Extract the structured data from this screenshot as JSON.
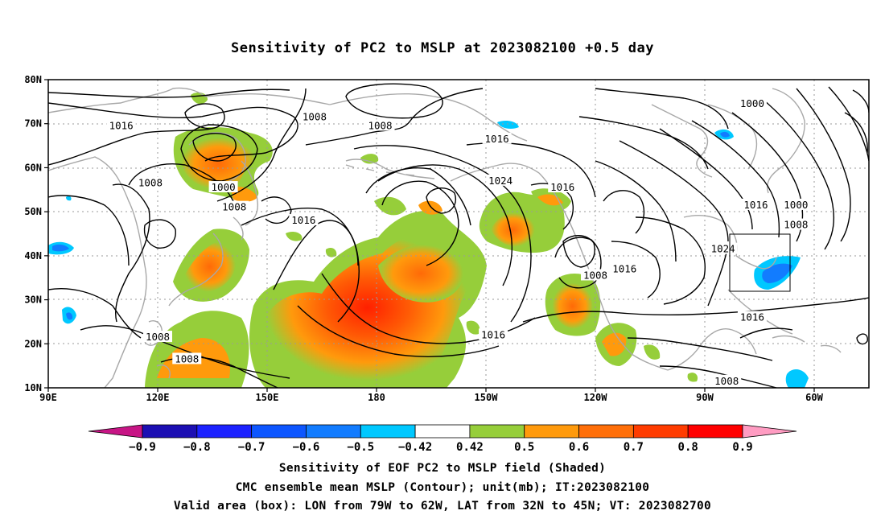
{
  "title": "Sensitivity of PC2 to MSLP at 2023082100 +0.5 day",
  "lat_ticks": [
    {
      "label": "80N",
      "lat": 80
    },
    {
      "label": "70N",
      "lat": 70
    },
    {
      "label": "60N",
      "lat": 60
    },
    {
      "label": "50N",
      "lat": 50
    },
    {
      "label": "40N",
      "lat": 40
    },
    {
      "label": "30N",
      "lat": 30
    },
    {
      "label": "20N",
      "lat": 20
    },
    {
      "label": "10N",
      "lat": 10
    }
  ],
  "lon_ticks": [
    {
      "label": "90E",
      "lon": 90
    },
    {
      "label": "120E",
      "lon": 120
    },
    {
      "label": "150E",
      "lon": 150
    },
    {
      "label": "180",
      "lon": 180
    },
    {
      "label": "150W",
      "lon": 210
    },
    {
      "label": "120W",
      "lon": 240
    },
    {
      "label": "90W",
      "lon": 270
    },
    {
      "label": "60W",
      "lon": 300
    }
  ],
  "map_extent": {
    "lon_min": 90,
    "lon_max": 315,
    "lat_min": 10,
    "lat_max": 80
  },
  "valid_box": {
    "lon_west": 281,
    "lon_east": 298,
    "lat_south": 32,
    "lat_north": 45
  },
  "contour_labels": [
    {
      "text": "1016",
      "lon": 110,
      "lat": 69.5
    },
    {
      "text": "1008",
      "lon": 163,
      "lat": 71.5
    },
    {
      "text": "1008",
      "lon": 181,
      "lat": 69.5
    },
    {
      "text": "1016",
      "lon": 213,
      "lat": 66.5
    },
    {
      "text": "1000",
      "lon": 283,
      "lat": 74.5
    },
    {
      "text": "1008",
      "lon": 118,
      "lat": 56.5
    },
    {
      "text": "1000",
      "lon": 138,
      "lat": 55.5
    },
    {
      "text": "1008",
      "lon": 141,
      "lat": 51
    },
    {
      "text": "1024",
      "lon": 214,
      "lat": 57
    },
    {
      "text": "1016",
      "lon": 231,
      "lat": 55.5
    },
    {
      "text": "1016",
      "lon": 160,
      "lat": 48
    },
    {
      "text": "1016",
      "lon": 284,
      "lat": 51.5
    },
    {
      "text": "1000",
      "lon": 295,
      "lat": 51.5
    },
    {
      "text": "1008",
      "lon": 295,
      "lat": 47
    },
    {
      "text": "1024",
      "lon": 275,
      "lat": 41.5
    },
    {
      "text": "1016",
      "lon": 248,
      "lat": 37
    },
    {
      "text": "1008",
      "lon": 240,
      "lat": 35.5
    },
    {
      "text": "1016",
      "lon": 283,
      "lat": 26
    },
    {
      "text": "1016",
      "lon": 212,
      "lat": 22
    },
    {
      "text": "1008",
      "lon": 120,
      "lat": 21.5
    },
    {
      "text": "1008",
      "lon": 128,
      "lat": 16.5
    },
    {
      "text": "1008",
      "lon": 276,
      "lat": 11.5
    }
  ],
  "colorbar": {
    "colors": [
      "#c71585",
      "#1c0fb3",
      "#1c22ff",
      "#0d56ff",
      "#127cff",
      "#00c8ff",
      "#ffffff",
      "#96ce3a",
      "#ff9a0c",
      "#ff6f09",
      "#ff3c00",
      "#ff0000",
      "#ff9cc2"
    ],
    "labels": [
      "−0.9",
      "−0.8",
      "−0.7",
      "−0.6",
      "−0.5",
      "−0.42",
      "0.42",
      "0.5",
      "0.6",
      "0.7",
      "0.8",
      "0.9"
    ]
  },
  "captions": [
    "Sensitivity of EOF PC2 to MSLP field (Shaded)",
    "CMC ensemble mean MSLP (Contour); unit(mb); IT:2023082100",
    "Valid area (box): LON from 79W to 62W, LAT from 32N to 45N; VT: 2023082700"
  ]
}
